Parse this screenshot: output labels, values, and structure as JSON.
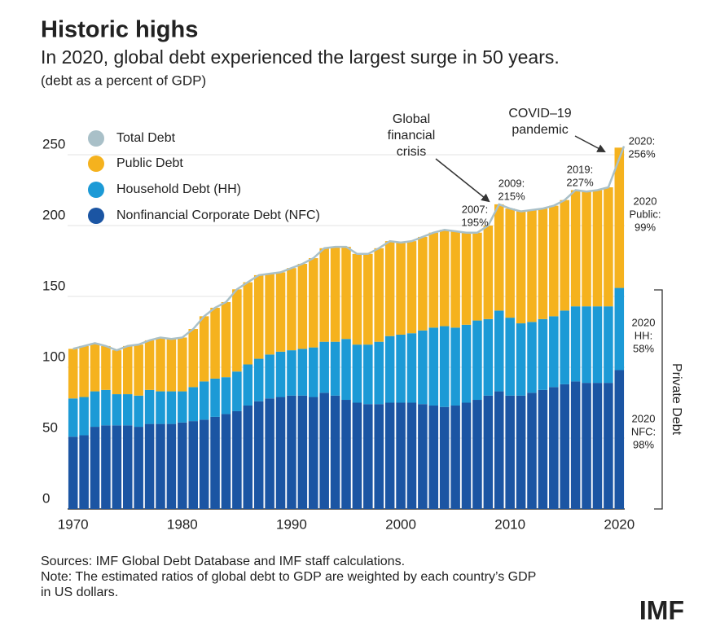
{
  "chart_data": {
    "type": "bar",
    "stacked": true,
    "title": "Historic highs",
    "subtitle": "In 2020, global debt experienced the largest surge in 50 years.",
    "unit_note": "(debt as a percent of GDP)",
    "x": [
      1970,
      1971,
      1972,
      1973,
      1974,
      1975,
      1976,
      1977,
      1978,
      1979,
      1980,
      1981,
      1982,
      1983,
      1984,
      1985,
      1986,
      1987,
      1988,
      1989,
      1990,
      1991,
      1992,
      1993,
      1994,
      1995,
      1996,
      1997,
      1998,
      1999,
      2000,
      2001,
      2002,
      2003,
      2004,
      2005,
      2006,
      2007,
      2008,
      2009,
      2010,
      2011,
      2012,
      2013,
      2014,
      2015,
      2016,
      2017,
      2018,
      2019,
      2020
    ],
    "xlim": [
      1969.5,
      2020.5
    ],
    "xticks": [
      1970,
      1980,
      1990,
      2000,
      2010,
      2020
    ],
    "ylim": [
      0,
      260
    ],
    "yticks": [
      0,
      50,
      100,
      150,
      200,
      250
    ],
    "grid": true,
    "legend": "upper left",
    "series": [
      {
        "name": "Total Debt",
        "type": "line",
        "color": "#a9c0c8",
        "values": [
          113,
          115,
          117,
          115,
          112,
          115,
          116,
          119,
          121,
          120,
          121,
          127,
          136,
          142,
          146,
          155,
          160,
          165,
          166,
          167,
          170,
          173,
          177,
          184,
          185,
          185,
          180,
          180,
          184,
          189,
          188,
          189,
          192,
          195,
          197,
          196,
          195,
          195,
          200,
          215,
          212,
          210,
          211,
          212,
          214,
          218,
          225,
          224,
          225,
          227,
          256
        ]
      },
      {
        "name": "Public Debt",
        "color": "#f5b21e",
        "values": [
          35,
          36,
          34,
          31,
          31,
          34,
          36,
          35,
          38,
          37,
          38,
          41,
          46,
          50,
          53,
          58,
          58,
          59,
          57,
          56,
          58,
          60,
          63,
          66,
          67,
          65,
          64,
          64,
          66,
          67,
          65,
          65,
          66,
          67,
          68,
          68,
          65,
          62,
          66,
          75,
          77,
          79,
          79,
          78,
          78,
          78,
          82,
          81,
          82,
          84,
          99
        ]
      },
      {
        "name": "Household Debt (HH)",
        "color": "#1c9ad6",
        "values": [
          27,
          27,
          25,
          25,
          22,
          22,
          22,
          24,
          23,
          23,
          22,
          24,
          27,
          27,
          26,
          28,
          29,
          30,
          31,
          32,
          32,
          33,
          35,
          36,
          38,
          43,
          41,
          42,
          44,
          47,
          48,
          49,
          52,
          55,
          57,
          55,
          55,
          56,
          54,
          57,
          55,
          51,
          50,
          50,
          50,
          52,
          53,
          54,
          54,
          54,
          58
        ]
      },
      {
        "name": "Nonfinancial Corporate Debt (NFC)",
        "color": "#1b55a3",
        "values": [
          51,
          52,
          58,
          59,
          59,
          59,
          58,
          60,
          60,
          60,
          61,
          62,
          63,
          65,
          67,
          69,
          73,
          76,
          78,
          79,
          80,
          80,
          79,
          82,
          80,
          77,
          75,
          74,
          74,
          75,
          75,
          75,
          74,
          73,
          72,
          73,
          75,
          77,
          80,
          83,
          80,
          80,
          82,
          84,
          86,
          88,
          90,
          89,
          89,
          89,
          98
        ]
      }
    ],
    "annotations": [
      {
        "lines": [
          "Global",
          "financial",
          "crisis"
        ]
      },
      {
        "lines": [
          "COVID–19",
          "pandemic"
        ]
      },
      {
        "lines": [
          "2007:",
          "195%"
        ]
      },
      {
        "lines": [
          "2009:",
          "215%"
        ]
      },
      {
        "lines": [
          "2019:",
          "227%"
        ]
      },
      {
        "lines": [
          "2020:",
          "256%"
        ]
      },
      {
        "lines": [
          "2020",
          "Public:",
          "99%"
        ],
        "color": "#e9b43c"
      },
      {
        "lines": [
          "2020",
          "HH:",
          "58%"
        ],
        "color": "#3fa6d9"
      },
      {
        "lines": [
          "2020",
          "NFC:",
          "98%"
        ],
        "color": "#4a7fbd"
      }
    ],
    "bracket_label": "Private Debt"
  },
  "footer": {
    "sources": "Sources: IMF Global Debt Database and IMF staff calculations.",
    "note": [
      "Note: The estimated ratios of global debt to GDP are weighted by each country’s GDP",
      "in US dollars."
    ],
    "logo": "IMF"
  }
}
